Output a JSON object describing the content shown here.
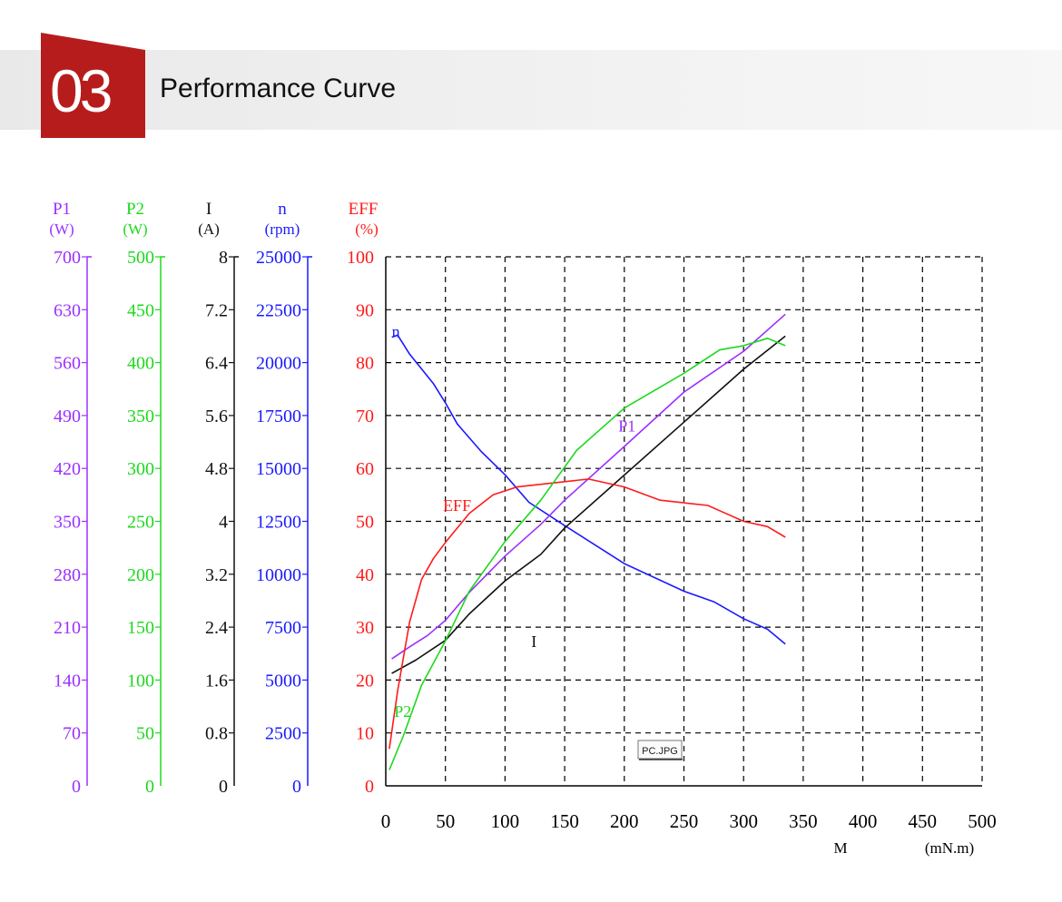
{
  "header": {
    "number": "03",
    "title": "Performance Curve",
    "accent_color": "#b71c1c"
  },
  "chart_data": {
    "type": "line",
    "xlabel": "M",
    "xunit": "(mN.m)",
    "xlim": [
      0,
      500
    ],
    "xticks": [
      "0",
      "50",
      "100",
      "150",
      "200",
      "250",
      "300",
      "350",
      "400",
      "450",
      "500"
    ],
    "grid": true,
    "tooltip": "PC.JPG",
    "axes": [
      {
        "key": "P1",
        "name": "P1",
        "unit": "(W)",
        "color": "#9b30ff",
        "ticks": [
          "0",
          "70",
          "140",
          "210",
          "280",
          "350",
          "420",
          "490",
          "560",
          "630",
          "700"
        ]
      },
      {
        "key": "P2",
        "name": "P2",
        "unit": "(W)",
        "color": "#1ed81e",
        "ticks": [
          "0",
          "50",
          "100",
          "150",
          "200",
          "250",
          "300",
          "350",
          "400",
          "450",
          "500"
        ]
      },
      {
        "key": "I",
        "name": "I",
        "unit": "(A)",
        "color": "#111111",
        "ticks": [
          "0",
          "0.8",
          "1.6",
          "2.4",
          "3.2",
          "4",
          "4.8",
          "5.6",
          "6.4",
          "7.2",
          "8"
        ]
      },
      {
        "key": "n",
        "name": "n",
        "unit": "(rpm)",
        "color": "#1a1aff",
        "ticks": [
          "0",
          "2500",
          "5000",
          "7500",
          "10000",
          "12500",
          "15000",
          "17500",
          "20000",
          "22500",
          "25000"
        ]
      },
      {
        "key": "EFF",
        "name": "EFF",
        "unit": "(%)",
        "color": "#ff1a1a",
        "ticks": [
          "0",
          "10",
          "20",
          "30",
          "40",
          "50",
          "60",
          "70",
          "80",
          "90",
          "100"
        ]
      }
    ],
    "series": [
      {
        "name": "n",
        "axis": "n",
        "color": "#1a1aff",
        "label": {
          "text": "n",
          "x": 5,
          "y": 21200
        },
        "points": [
          [
            5,
            21200
          ],
          [
            10,
            21300
          ],
          [
            20,
            20400
          ],
          [
            40,
            19000
          ],
          [
            50,
            18100
          ],
          [
            60,
            17100
          ],
          [
            80,
            15800
          ],
          [
            100,
            14700
          ],
          [
            120,
            13400
          ],
          [
            150,
            12300
          ],
          [
            200,
            10500
          ],
          [
            250,
            9200
          ],
          [
            275,
            8700
          ],
          [
            300,
            7900
          ],
          [
            320,
            7400
          ],
          [
            335,
            6700
          ]
        ]
      },
      {
        "name": "P1",
        "axis": "P1",
        "color": "#9b30ff",
        "label": {
          "text": "P1",
          "x": 195,
          "y": 469
        },
        "points": [
          [
            5,
            168
          ],
          [
            20,
            184
          ],
          [
            35,
            199
          ],
          [
            50,
            219
          ],
          [
            70,
            256
          ],
          [
            100,
            304
          ],
          [
            130,
            346
          ],
          [
            150,
            378
          ],
          [
            200,
            449
          ],
          [
            250,
            521
          ],
          [
            300,
            575
          ],
          [
            335,
            624
          ]
        ]
      },
      {
        "name": "I",
        "axis": "I",
        "color": "#111111",
        "label": {
          "text": "I",
          "x": 122,
          "y": 2.1
        },
        "points": [
          [
            5,
            1.7
          ],
          [
            25,
            1.9
          ],
          [
            50,
            2.2
          ],
          [
            70,
            2.6
          ],
          [
            100,
            3.1
          ],
          [
            130,
            3.5
          ],
          [
            150,
            3.9
          ],
          [
            200,
            4.7
          ],
          [
            250,
            5.5
          ],
          [
            300,
            6.3
          ],
          [
            335,
            6.8
          ]
        ]
      },
      {
        "name": "EFF",
        "axis": "EFF",
        "color": "#ff1a1a",
        "label": {
          "text": "EFF",
          "x": 48,
          "y": 52
        },
        "points": [
          [
            3,
            7
          ],
          [
            10,
            18
          ],
          [
            20,
            31
          ],
          [
            30,
            39
          ],
          [
            40,
            43
          ],
          [
            50,
            46
          ],
          [
            70,
            51.5
          ],
          [
            90,
            55
          ],
          [
            110,
            56.5
          ],
          [
            130,
            57
          ],
          [
            150,
            57.5
          ],
          [
            170,
            58
          ],
          [
            200,
            56.5
          ],
          [
            230,
            54
          ],
          [
            250,
            53.5
          ],
          [
            270,
            53
          ],
          [
            280,
            52
          ],
          [
            300,
            50
          ],
          [
            320,
            49
          ],
          [
            335,
            47
          ]
        ]
      },
      {
        "name": "P2",
        "axis": "P2",
        "color": "#1ed81e",
        "label": {
          "text": "P2",
          "x": 7,
          "y": 65
        },
        "points": [
          [
            3,
            15
          ],
          [
            15,
            48
          ],
          [
            30,
            95
          ],
          [
            50,
            137
          ],
          [
            70,
            184
          ],
          [
            100,
            231
          ],
          [
            130,
            270
          ],
          [
            160,
            317
          ],
          [
            200,
            357
          ],
          [
            250,
            390
          ],
          [
            280,
            412
          ],
          [
            300,
            416
          ],
          [
            320,
            423
          ],
          [
            335,
            416
          ]
        ]
      }
    ]
  }
}
